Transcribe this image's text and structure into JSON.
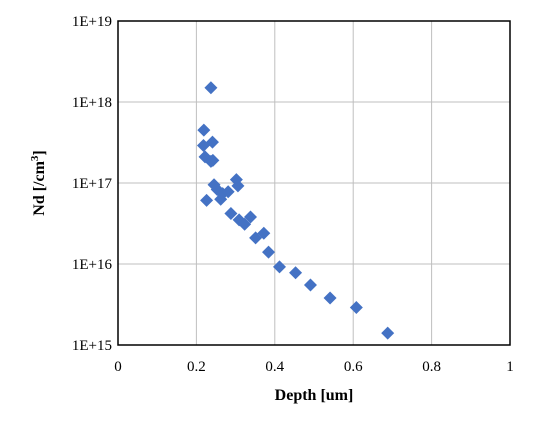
{
  "chart_data": {
    "type": "scatter",
    "title": "",
    "xlabel": "Depth [um]",
    "ylabel_main": "Nd [/cm",
    "ylabel_sup": "3",
    "ylabel_end": "]",
    "xlim": [
      0,
      1
    ],
    "ylim": [
      1000000000000000.0,
      1e+19
    ],
    "y_scale": "log",
    "grid": true,
    "legend": "none",
    "marker": "diamond",
    "color": "#4472C4",
    "x_ticks": [
      {
        "value": 0,
        "label": "0"
      },
      {
        "value": 0.2,
        "label": "0.2"
      },
      {
        "value": 0.4,
        "label": "0.4"
      },
      {
        "value": 0.6,
        "label": "0.6"
      },
      {
        "value": 0.8,
        "label": "0.8"
      },
      {
        "value": 1,
        "label": "1"
      }
    ],
    "y_ticks": [
      {
        "value": 1000000000000000.0,
        "label": "1E+15"
      },
      {
        "value": 1e+16,
        "label": "1E+16"
      },
      {
        "value": 1e+17,
        "label": "1E+17"
      },
      {
        "value": 1e+18,
        "label": "1E+18"
      },
      {
        "value": 1e+19,
        "label": "1E+19"
      }
    ],
    "points": [
      {
        "x": 0.237,
        "y": 1.5e+18
      },
      {
        "x": 0.219,
        "y": 4.5e+17
      },
      {
        "x": 0.218,
        "y": 2.9e+17
      },
      {
        "x": 0.241,
        "y": 3.2e+17
      },
      {
        "x": 0.222,
        "y": 2.1e+17
      },
      {
        "x": 0.237,
        "y": 1.85e+17
      },
      {
        "x": 0.242,
        "y": 1.9e+17
      },
      {
        "x": 0.302,
        "y": 1.1e+17
      },
      {
        "x": 0.306,
        "y": 9.2e+16
      },
      {
        "x": 0.245,
        "y": 9.5e+16
      },
      {
        "x": 0.253,
        "y": 8.3e+16
      },
      {
        "x": 0.267,
        "y": 7.4e+16
      },
      {
        "x": 0.281,
        "y": 7.8e+16
      },
      {
        "x": 0.262,
        "y": 6.3e+16
      },
      {
        "x": 0.226,
        "y": 6.1e+16
      },
      {
        "x": 0.288,
        "y": 4.2e+16
      },
      {
        "x": 0.309,
        "y": 3.5e+16
      },
      {
        "x": 0.338,
        "y": 3.8e+16
      },
      {
        "x": 0.323,
        "y": 3.1e+16
      },
      {
        "x": 0.372,
        "y": 2.4e+16
      },
      {
        "x": 0.351,
        "y": 2.1e+16
      },
      {
        "x": 0.384,
        "y": 1.4e+16
      },
      {
        "x": 0.412,
        "y": 9200000000000000.0
      },
      {
        "x": 0.453,
        "y": 7800000000000000.0
      },
      {
        "x": 0.491,
        "y": 5500000000000000.0
      },
      {
        "x": 0.541,
        "y": 3800000000000000.0
      },
      {
        "x": 0.608,
        "y": 2900000000000000.0
      },
      {
        "x": 0.688,
        "y": 1400000000000000.0
      }
    ]
  }
}
